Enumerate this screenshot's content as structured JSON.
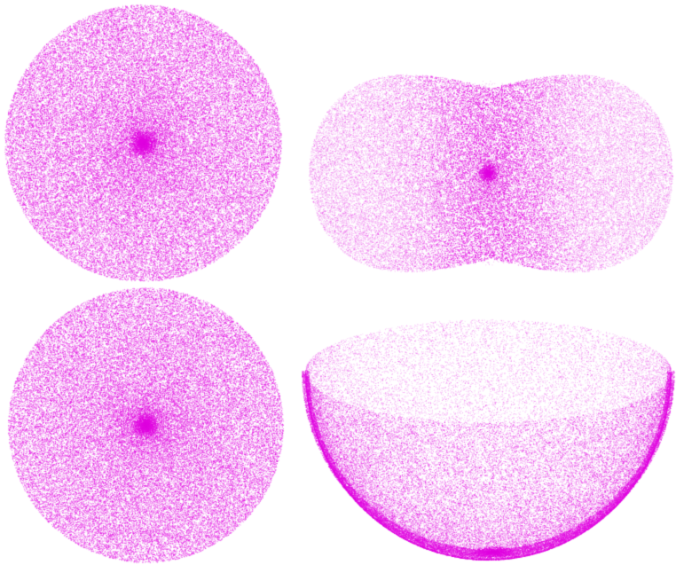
{
  "figure": {
    "background_color": "#ffffff",
    "point_color": "#e000e0",
    "panels": [
      {
        "id": "disc-top-left",
        "shape": "disc",
        "density": "centre-concentrated"
      },
      {
        "id": "peanut-top-right",
        "shape": "peanut",
        "density": "centre-concentrated"
      },
      {
        "id": "disc-bottom-left",
        "shape": "disc",
        "density": "centre-concentrated"
      },
      {
        "id": "hemisphere-bottom-right",
        "shape": "hemispherical-bowl",
        "density": "rim-and-bottom-concentrated"
      }
    ]
  }
}
